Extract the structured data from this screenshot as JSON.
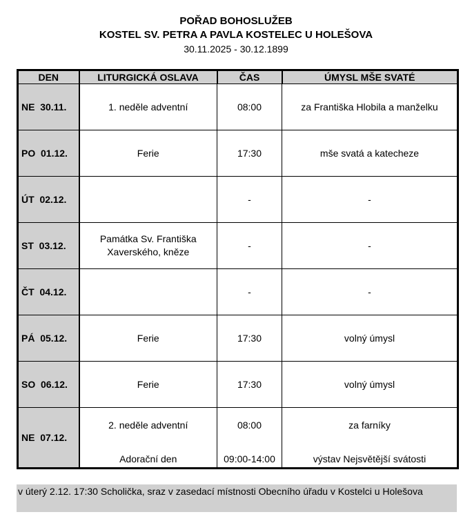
{
  "header": {
    "title": "POŘAD BOHOSLUŽEB",
    "church": "KOSTEL SV. PETRA A PAVLA KOSTELEC U HOLEŠOVA",
    "range": "30.11.2025 - 30.12.1899"
  },
  "table": {
    "columns": [
      "DEN",
      "LITURGICKÁ OSLAVA",
      "ČAS",
      "ÚMYSL MŠE SVATÉ"
    ],
    "rows": [
      {
        "day": "NE  30.11.",
        "celebration": "1. neděle adventní",
        "time": "08:00",
        "intention": "za Františka Hlobila a manželku"
      },
      {
        "day": "PO  01.12.",
        "celebration": "Ferie",
        "time": "17:30",
        "intention": "mše svatá a katecheze"
      },
      {
        "day": "ÚT  02.12.",
        "celebration": "",
        "time": "-",
        "intention": "-"
      },
      {
        "day": "ST  03.12.",
        "celebration": "Památka Sv. Františka Xaverského, kněze",
        "time": "-",
        "intention": "-"
      },
      {
        "day": "ČT  04.12.",
        "celebration": "",
        "time": "-",
        "intention": "-"
      },
      {
        "day": "PÁ  05.12.",
        "celebration": "Ferie",
        "time": "17:30",
        "intention": "volný úmysl"
      },
      {
        "day": "SO  06.12.",
        "celebration": "Ferie",
        "time": "17:30",
        "intention": "volný úmysl"
      }
    ],
    "last_row": {
      "day": "NE  07.12.",
      "celebration": [
        "2. neděle adventní",
        "Adorační den"
      ],
      "time": [
        "08:00",
        "09:00-14:00"
      ],
      "intention": [
        "za farníky",
        "výstav Nejsvětější svátosti"
      ]
    }
  },
  "note": "v úterý 2.12. 17:30 Scholička, sraz v zasedací místnosti Obecního úřadu v Kostelci u Holešova"
}
